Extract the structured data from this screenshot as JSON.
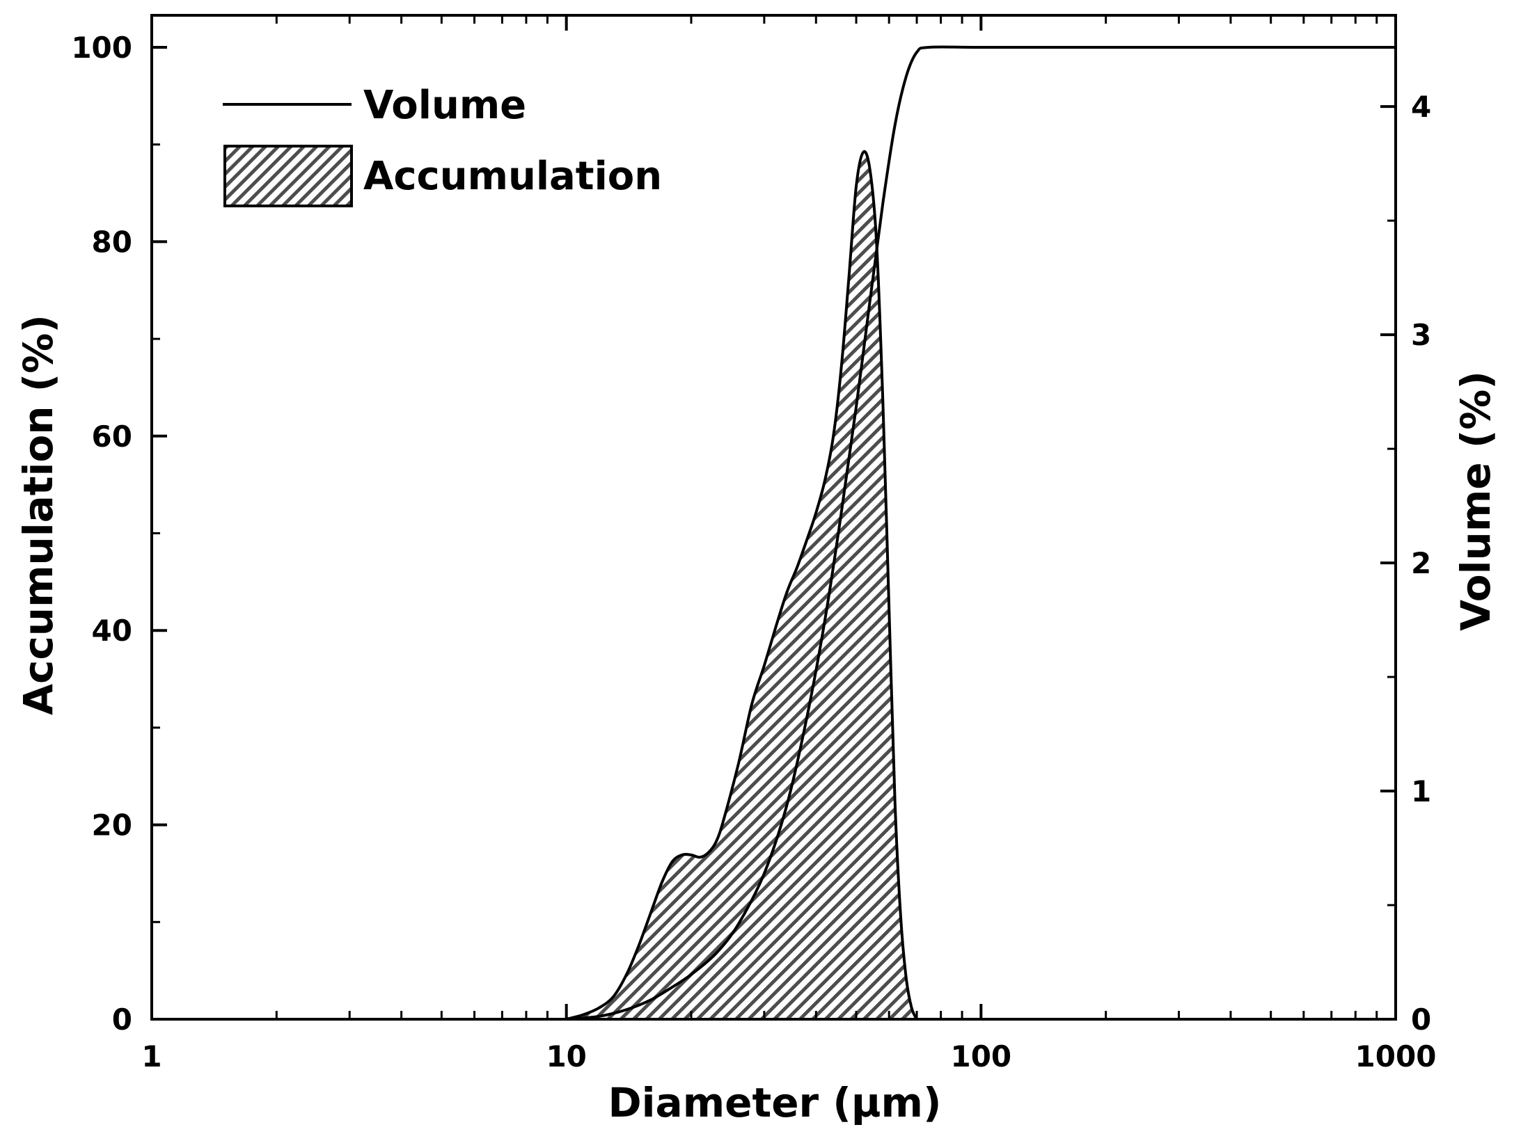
{
  "chart_data": {
    "type": "area",
    "title": "",
    "xlabel": "Diameter (µm)",
    "ylabel_left": "Accumulation (%)",
    "ylabel_right": "Volume (%)",
    "x_scale": "log",
    "xlim": [
      1,
      1000
    ],
    "ylim_left": [
      0,
      100
    ],
    "ylim_right": [
      0,
      4.4
    ],
    "x_ticks": [
      {
        "value": 1,
        "label": "1"
      },
      {
        "value": 10,
        "label": "10"
      },
      {
        "value": 100,
        "label": "100"
      },
      {
        "value": 1000,
        "label": "1000"
      }
    ],
    "y_left_ticks": [
      {
        "value": 0,
        "label": "0"
      },
      {
        "value": 20,
        "label": "20"
      },
      {
        "value": 40,
        "label": "40"
      },
      {
        "value": 60,
        "label": "60"
      },
      {
        "value": 80,
        "label": "80"
      },
      {
        "value": 100,
        "label": "100"
      }
    ],
    "y_right_ticks": [
      {
        "value": 0,
        "label": "0"
      },
      {
        "value": 1,
        "label": "1"
      },
      {
        "value": 2,
        "label": "2"
      },
      {
        "value": 3,
        "label": "3"
      },
      {
        "value": 4,
        "label": "4"
      }
    ],
    "grid": false,
    "legend_position": "top-left",
    "legend": [
      {
        "label": "Volume",
        "style": "line"
      },
      {
        "label": "Accumulation",
        "style": "hatched-area"
      }
    ],
    "series": [
      {
        "name": "Volume",
        "style": "line",
        "axis": "left",
        "x": [
          10,
          12,
          14,
          16,
          18,
          20,
          23,
          26,
          30,
          34,
          38,
          42,
          46,
          50,
          54,
          58,
          62,
          66,
          70,
          75,
          100,
          200,
          500,
          1000
        ],
        "y": [
          0,
          0.3,
          1,
          2,
          3.3,
          4.6,
          6.8,
          9.8,
          15,
          22,
          31,
          41,
          52,
          63,
          74,
          84,
          92,
          97,
          99.5,
          100,
          100,
          100,
          100,
          100
        ]
      },
      {
        "name": "Accumulation",
        "style": "hatched-area",
        "axis": "right",
        "x": [
          10,
          11,
          12,
          13,
          14,
          15,
          16,
          17,
          18,
          19,
          20,
          21,
          22,
          23,
          24,
          26,
          28,
          30,
          32,
          34,
          36,
          38,
          40,
          42,
          44,
          46,
          48,
          50,
          52,
          54,
          56,
          58,
          60,
          62,
          64,
          66,
          68,
          70
        ],
        "y": [
          0,
          0.02,
          0.05,
          0.1,
          0.2,
          0.33,
          0.47,
          0.6,
          0.69,
          0.72,
          0.72,
          0.71,
          0.73,
          0.78,
          0.88,
          1.12,
          1.38,
          1.55,
          1.72,
          1.87,
          1.98,
          2.1,
          2.22,
          2.36,
          2.55,
          2.85,
          3.25,
          3.65,
          3.8,
          3.72,
          3.4,
          2.7,
          1.8,
          0.95,
          0.45,
          0.18,
          0.05,
          0
        ]
      }
    ]
  }
}
